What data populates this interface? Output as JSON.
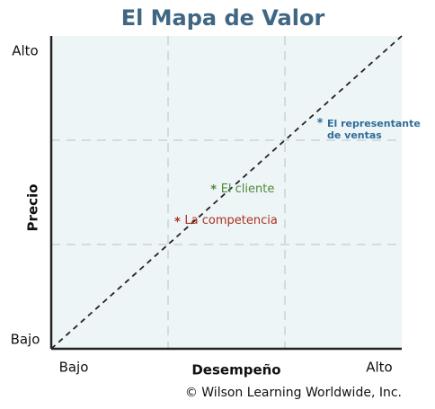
{
  "chart_data": {
    "type": "scatter",
    "title": "El Mapa de Valor",
    "x_label": "Desempeño",
    "y_label": "Precio",
    "xlim": [
      0,
      3
    ],
    "ylim": [
      0,
      3
    ],
    "xticks": [
      {
        "value": 0,
        "label": "Bajo"
      },
      {
        "value": 3,
        "label": "Alto"
      }
    ],
    "yticks": [
      {
        "value": 0,
        "label": "Bajo"
      },
      {
        "value": 3,
        "label": "Alto"
      }
    ],
    "grid": true,
    "series": [
      {
        "name": "El representante de ventas",
        "color": "#2e6d9a",
        "x": [
          2.3
        ],
        "values": [
          2.17
        ]
      },
      {
        "name": "El cliente",
        "color": "#4f8a3c",
        "x": [
          1.39
        ],
        "values": [
          1.53
        ]
      },
      {
        "name": "La competencia",
        "color": "#a8321f",
        "x": [
          1.08
        ],
        "values": [
          1.22
        ]
      }
    ],
    "source": "© Wilson Learning Worldwide, Inc."
  }
}
